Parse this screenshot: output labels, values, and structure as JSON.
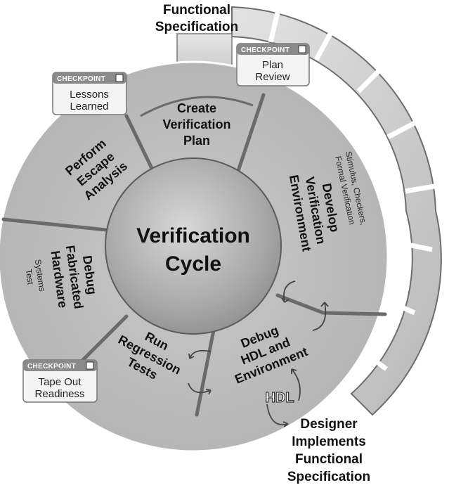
{
  "center": {
    "line1": "Verification",
    "line2": "Cycle"
  },
  "top_label": {
    "line1": "Functional",
    "line2": "Specification"
  },
  "bottom_label": {
    "line1": "Designer",
    "line2": "Implements",
    "line3": "Functional",
    "line4": "Specification"
  },
  "hdl_badge": "HDL",
  "segments": {
    "create_plan": {
      "line1": "Create",
      "line2": "Verification",
      "line3": "Plan"
    },
    "develop_env": {
      "line1": "Develop",
      "line2": "Verification",
      "line3": "Environment",
      "sub1": "Stimulus, Checkers,",
      "sub2": "Formal Verification"
    },
    "debug_hdl": {
      "line1": "Debug",
      "line2": "HDL and",
      "line3": "Environment"
    },
    "run_regression": {
      "line1": "Run",
      "line2": "Regression",
      "line3": "Tests"
    },
    "debug_hw": {
      "line1": "Debug",
      "line2": "Fabricated",
      "line3": "Hardware",
      "sub1": "Systems",
      "sub2": "Test"
    },
    "escape": {
      "line1": "Perform",
      "line2": "Escape",
      "line3": "Analysis"
    }
  },
  "checkpoints": {
    "header": "CHECKPOINT",
    "plan_review": {
      "line1": "Plan",
      "line2": "Review"
    },
    "lessons": {
      "line1": "Lessons",
      "line2": "Learned"
    },
    "tapeout": {
      "line1": "Tape Out",
      "line2": "Readiness"
    }
  },
  "colors": {
    "ring": "#cfcfcf",
    "segment": "#c4c4c4",
    "border": "#6a6a6a",
    "center": "#a9a9a9",
    "checkpoint_head": "#8a8a8a"
  }
}
